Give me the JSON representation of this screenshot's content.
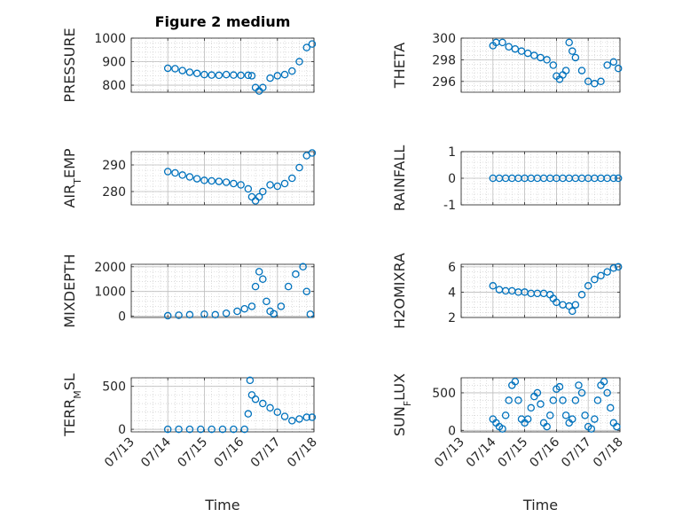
{
  "figure": {
    "title": "Figure 2 medium",
    "xlabel": "Time"
  },
  "chart_data": [
    {
      "type": "scatter",
      "ylabel": "PRESSURE",
      "ylim": [
        770,
        1000
      ],
      "yticks": [
        800,
        900,
        1000
      ],
      "xticks_shown": false,
      "color": "#0072BD",
      "x": [
        14.0,
        14.2,
        14.4,
        14.6,
        14.8,
        15.0,
        15.2,
        15.4,
        15.6,
        15.8,
        16.0,
        16.2,
        16.3,
        16.4,
        16.5,
        16.6,
        16.8,
        17.0,
        17.2,
        17.4,
        17.6,
        17.8,
        17.95
      ],
      "y": [
        872,
        870,
        862,
        855,
        850,
        845,
        843,
        842,
        845,
        843,
        842,
        842,
        840,
        790,
        775,
        790,
        830,
        840,
        845,
        860,
        900,
        960,
        975
      ]
    },
    {
      "type": "scatter",
      "ylabel": "THETA",
      "ylim": [
        295,
        300
      ],
      "yticks": [
        296,
        298,
        300
      ],
      "xticks_shown": false,
      "color": "#0072BD",
      "x": [
        14.0,
        14.1,
        14.3,
        14.5,
        14.7,
        14.9,
        15.1,
        15.3,
        15.5,
        15.7,
        15.9,
        16.0,
        16.1,
        16.2,
        16.3,
        16.4,
        16.5,
        16.6,
        16.8,
        17.0,
        17.2,
        17.4,
        17.6,
        17.8,
        17.95
      ],
      "y": [
        299.3,
        299.6,
        299.6,
        299.2,
        299.0,
        298.8,
        298.6,
        298.4,
        298.2,
        298.0,
        297.5,
        296.5,
        296.2,
        296.6,
        297.0,
        299.6,
        298.8,
        298.2,
        297.0,
        296.0,
        295.8,
        296.0,
        297.5,
        297.8,
        297.2
      ]
    },
    {
      "type": "scatter",
      "ylabel": "AIR_TEMP",
      "ylim": [
        275,
        295
      ],
      "yticks": [
        280,
        290
      ],
      "xticks_shown": false,
      "color": "#0072BD",
      "x": [
        14.0,
        14.2,
        14.4,
        14.6,
        14.8,
        15.0,
        15.2,
        15.4,
        15.6,
        15.8,
        16.0,
        16.2,
        16.3,
        16.4,
        16.5,
        16.6,
        16.8,
        17.0,
        17.2,
        17.4,
        17.6,
        17.8,
        17.95
      ],
      "y": [
        287.5,
        287.0,
        286.2,
        285.5,
        284.8,
        284.2,
        284.0,
        283.8,
        283.5,
        283.0,
        282.5,
        281.0,
        278.0,
        276.5,
        278.0,
        280.0,
        282.5,
        282.0,
        283.0,
        285.0,
        289.0,
        293.5,
        294.5
      ]
    },
    {
      "type": "scatter",
      "ylabel": "RAINFALL",
      "ylim": [
        -1,
        1
      ],
      "yticks": [
        -1,
        0,
        1
      ],
      "xticks_shown": false,
      "color": "#0072BD",
      "x": [
        14.0,
        14.2,
        14.4,
        14.6,
        14.8,
        15.0,
        15.2,
        15.4,
        15.6,
        15.8,
        16.0,
        16.2,
        16.4,
        16.6,
        16.8,
        17.0,
        17.2,
        17.4,
        17.6,
        17.8,
        17.95
      ],
      "y": [
        0,
        0,
        0,
        0,
        0,
        0,
        0,
        0,
        0,
        0,
        0,
        0,
        0,
        0,
        0,
        0,
        0,
        0,
        0,
        0,
        0
      ]
    },
    {
      "type": "scatter",
      "ylabel": "MIXDEPTH",
      "ylim": [
        -50,
        2100
      ],
      "yticks": [
        0,
        1000,
        2000
      ],
      "xticks_shown": false,
      "color": "#0072BD",
      "x": [
        14.0,
        14.3,
        14.6,
        15.0,
        15.3,
        15.6,
        15.9,
        16.1,
        16.3,
        16.4,
        16.5,
        16.6,
        16.7,
        16.8,
        16.9,
        17.1,
        17.3,
        17.5,
        17.7,
        17.8,
        17.9
      ],
      "y": [
        20,
        40,
        60,
        80,
        60,
        120,
        200,
        300,
        400,
        1200,
        1800,
        1500,
        600,
        200,
        100,
        400,
        1200,
        1700,
        2000,
        1000,
        80
      ]
    },
    {
      "type": "scatter",
      "ylabel": "H2OMIXRA",
      "ylim": [
        2,
        6.2
      ],
      "yticks": [
        2,
        4,
        6
      ],
      "xticks_shown": false,
      "color": "#0072BD",
      "x": [
        14.0,
        14.2,
        14.4,
        14.6,
        14.8,
        15.0,
        15.2,
        15.4,
        15.6,
        15.8,
        15.9,
        16.0,
        16.2,
        16.4,
        16.5,
        16.6,
        16.8,
        17.0,
        17.2,
        17.4,
        17.6,
        17.8,
        17.95
      ],
      "y": [
        4.5,
        4.2,
        4.1,
        4.1,
        4.0,
        4.0,
        3.9,
        3.9,
        3.9,
        3.8,
        3.5,
        3.2,
        3.0,
        2.9,
        2.5,
        3.0,
        3.8,
        4.5,
        5.0,
        5.3,
        5.6,
        5.9,
        6.0
      ]
    },
    {
      "type": "scatter",
      "ylabel": "TERR_MSL",
      "ylim": [
        -30,
        600
      ],
      "yticks": [
        0,
        500
      ],
      "xticks_shown": true,
      "color": "#0072BD",
      "x": [
        14.0,
        14.3,
        14.6,
        14.9,
        15.2,
        15.5,
        15.8,
        16.1,
        16.2,
        16.25,
        16.3,
        16.4,
        16.6,
        16.8,
        17.0,
        17.2,
        17.4,
        17.6,
        17.8,
        17.95
      ],
      "y": [
        0,
        0,
        0,
        0,
        0,
        0,
        0,
        0,
        180,
        570,
        400,
        350,
        300,
        250,
        200,
        150,
        100,
        120,
        140,
        140
      ]
    },
    {
      "type": "scatter",
      "ylabel": "SUN_FLUX",
      "ylim": [
        -20,
        700
      ],
      "yticks": [
        0,
        500
      ],
      "xticks_shown": true,
      "color": "#0072BD",
      "x": [
        14.0,
        14.1,
        14.2,
        14.3,
        14.4,
        14.5,
        14.6,
        14.7,
        14.8,
        14.9,
        15.0,
        15.1,
        15.2,
        15.3,
        15.4,
        15.5,
        15.6,
        15.7,
        15.8,
        15.9,
        16.0,
        16.1,
        16.2,
        16.3,
        16.4,
        16.5,
        16.6,
        16.7,
        16.8,
        16.9,
        17.0,
        17.1,
        17.2,
        17.3,
        17.4,
        17.5,
        17.6,
        17.7,
        17.8,
        17.9
      ],
      "y": [
        150,
        100,
        50,
        20,
        200,
        400,
        600,
        650,
        400,
        150,
        100,
        150,
        300,
        450,
        500,
        350,
        100,
        50,
        200,
        400,
        550,
        580,
        400,
        200,
        100,
        150,
        400,
        600,
        500,
        200,
        50,
        20,
        150,
        400,
        600,
        650,
        500,
        300,
        100,
        50
      ]
    }
  ],
  "axes_common": {
    "xlim": [
      13,
      18
    ],
    "xtick_values": [
      13,
      14,
      15,
      16,
      17,
      18
    ],
    "xtick_labels": [
      "07/13",
      "07/14",
      "07/15",
      "07/16",
      "07/17",
      "07/18"
    ],
    "grid": "on",
    "marker": "circle-open"
  }
}
